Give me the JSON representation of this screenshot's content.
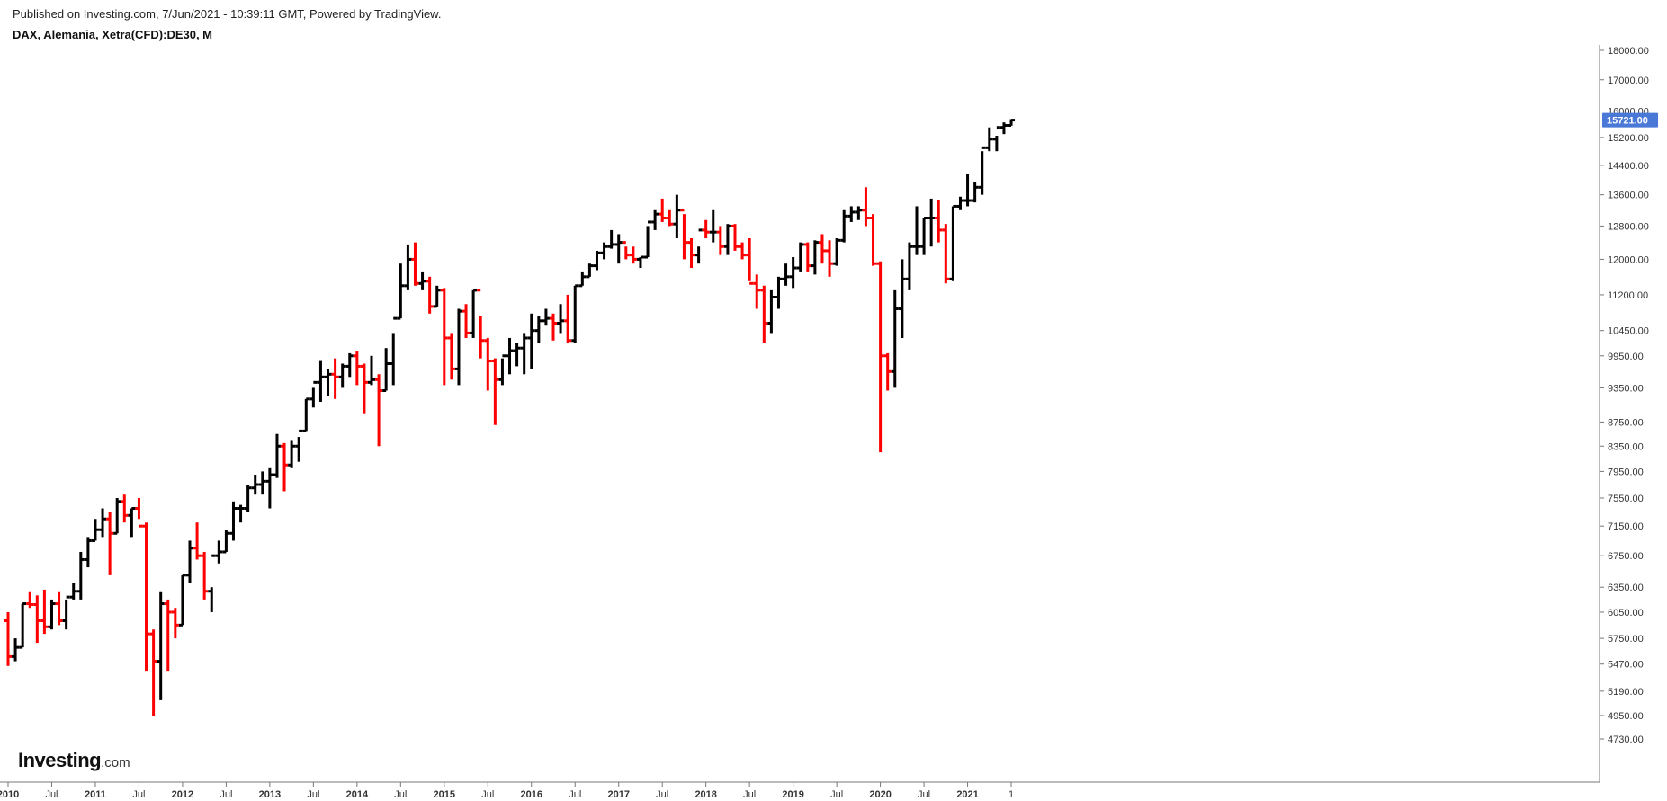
{
  "header": {
    "published": "Published on Investing.com, 7/Jun/2021 - 10:39:11 GMT, Powered by TradingView.",
    "instrument": "DAX, Alemania, Xetra(CFD):DE30, M"
  },
  "logo": {
    "brand": "Investing",
    "suffix": ".com"
  },
  "colors": {
    "up": "#000000",
    "down": "#ff0000",
    "last_price_bg": "#4a78d6",
    "axis": "#555555"
  },
  "chart_data": {
    "type": "ohlc",
    "price_axis_labels": [
      "18000.00",
      "17000.00",
      "16000.00",
      "15200.00",
      "14400.00",
      "13600.00",
      "12800.00",
      "12000.00",
      "11200.00",
      "10450.00",
      "9950.00",
      "9350.00",
      "8750.00",
      "8350.00",
      "7950.00",
      "7550.00",
      "7150.00",
      "6750.00",
      "6350.00",
      "6050.00",
      "5750.00",
      "5470.00",
      "5190.00",
      "4950.00",
      "4730.00"
    ],
    "time_axis_labels": [
      "2010",
      "Jul",
      "2011",
      "Jul",
      "2012",
      "Jul",
      "2013",
      "Jul",
      "2014",
      "Jul",
      "2015",
      "Jul",
      "2016",
      "Jul",
      "2017",
      "Jul",
      "2018",
      "Jul",
      "2019",
      "Jul",
      "2020",
      "Jul",
      "2021",
      "1"
    ],
    "last_price": 15721.0,
    "last_price_label": "15721.00",
    "y_scale": "log",
    "ylim": [
      4600,
      18000
    ],
    "start_month": "2010-01",
    "bars": [
      [
        5950,
        6050,
        5450,
        5550
      ],
      [
        5550,
        5750,
        5500,
        5650
      ],
      [
        5650,
        6150,
        5650,
        6150
      ],
      [
        6150,
        6300,
        6100,
        6140
      ],
      [
        6140,
        6250,
        5700,
        5950
      ],
      [
        5950,
        6320,
        5800,
        5880
      ],
      [
        5880,
        6200,
        5850,
        6150
      ],
      [
        6150,
        6300,
        5900,
        5950
      ],
      [
        5950,
        6200,
        5850,
        6230
      ],
      [
        6230,
        6400,
        6200,
        6300
      ],
      [
        6300,
        6800,
        6200,
        6700
      ],
      [
        6700,
        7000,
        6600,
        6950
      ],
      [
        6950,
        7250,
        6950,
        7100
      ],
      [
        7100,
        7400,
        7000,
        7250
      ],
      [
        7250,
        7350,
        6500,
        7050
      ],
      [
        7050,
        7550,
        7050,
        7500
      ],
      [
        7500,
        7600,
        7200,
        7300
      ],
      [
        7300,
        7400,
        7000,
        7400
      ],
      [
        7400,
        7550,
        7250,
        7150
      ],
      [
        7150,
        7200,
        5400,
        5800
      ],
      [
        5800,
        5850,
        4950,
        5500
      ],
      [
        5500,
        6300,
        5100,
        6150
      ],
      [
        6150,
        6200,
        5400,
        6050
      ],
      [
        6050,
        6100,
        5750,
        5900
      ],
      [
        5900,
        6500,
        5900,
        6500
      ],
      [
        6500,
        6950,
        6400,
        6850
      ],
      [
        6850,
        7200,
        6700,
        6750
      ],
      [
        6750,
        6800,
        6200,
        6300
      ],
      [
        6300,
        6350,
        6050,
        6750
      ],
      [
        6750,
        6950,
        6650,
        6800
      ],
      [
        6800,
        7100,
        6800,
        7050
      ],
      [
        7050,
        7500,
        6950,
        7400
      ],
      [
        7400,
        7450,
        7200,
        7400
      ],
      [
        7400,
        7750,
        7350,
        7700
      ],
      [
        7700,
        7900,
        7600,
        7750
      ],
      [
        7750,
        7950,
        7600,
        7800
      ],
      [
        7800,
        8000,
        7400,
        7900
      ],
      [
        7900,
        8550,
        7850,
        8350
      ],
      [
        8350,
        8400,
        7650,
        8050
      ],
      [
        8050,
        8450,
        8000,
        8350
      ],
      [
        8350,
        8500,
        8100,
        8600
      ],
      [
        8600,
        9150,
        8600,
        9150
      ],
      [
        9150,
        9350,
        9000,
        9450
      ],
      [
        9450,
        9850,
        9100,
        9550
      ],
      [
        9550,
        9700,
        9200,
        9600
      ],
      [
        9600,
        9900,
        9150,
        9550
      ],
      [
        9550,
        9800,
        9350,
        9750
      ],
      [
        9750,
        10000,
        9550,
        9950
      ],
      [
        9950,
        10050,
        9400,
        9750
      ],
      [
        9750,
        9800,
        8900,
        9450
      ],
      [
        9450,
        9950,
        9400,
        9500
      ],
      [
        9500,
        9600,
        8350,
        9300
      ],
      [
        9300,
        10100,
        9300,
        9800
      ],
      [
        9800,
        10400,
        9400,
        10700
      ],
      [
        10700,
        11900,
        10700,
        11400
      ],
      [
        11400,
        12350,
        11300,
        12000
      ],
      [
        12000,
        12400,
        11400,
        11450
      ],
      [
        11450,
        11700,
        11300,
        11500
      ],
      [
        11500,
        11600,
        10800,
        10950
      ],
      [
        10950,
        11400,
        10950,
        11300
      ],
      [
        11300,
        11350,
        9400,
        10300
      ],
      [
        10300,
        10400,
        9500,
        9700
      ],
      [
        9700,
        10900,
        9400,
        10850
      ],
      [
        10850,
        11000,
        10300,
        10400
      ],
      [
        10400,
        11300,
        10300,
        11300
      ],
      [
        11300,
        10750,
        9900,
        10250
      ],
      [
        10250,
        10300,
        9300,
        9850
      ],
      [
        9850,
        9900,
        8700,
        9500
      ],
      [
        9500,
        9900,
        9400,
        9950
      ],
      [
        9950,
        10300,
        9600,
        10050
      ],
      [
        10050,
        10200,
        9750,
        10100
      ],
      [
        10100,
        10400,
        9600,
        10300
      ],
      [
        10300,
        10800,
        9700,
        10450
      ],
      [
        10450,
        10750,
        10200,
        10650
      ],
      [
        10650,
        10900,
        10550,
        10700
      ],
      [
        10700,
        10800,
        10250,
        10600
      ],
      [
        10600,
        11000,
        10400,
        10650
      ],
      [
        10650,
        11200,
        10200,
        10250
      ],
      [
        10250,
        11400,
        10200,
        11400
      ],
      [
        11400,
        11700,
        11400,
        11600
      ],
      [
        11600,
        11900,
        11600,
        11850
      ],
      [
        11850,
        12200,
        11750,
        12150
      ],
      [
        12150,
        12400,
        12000,
        12300
      ],
      [
        12300,
        12700,
        12250,
        12350
      ],
      [
        12350,
        12600,
        11900,
        12400
      ],
      [
        12400,
        12300,
        12000,
        12100
      ],
      [
        12100,
        12300,
        11900,
        12000
      ],
      [
        12000,
        12050,
        11800,
        12050
      ],
      [
        12050,
        12800,
        12050,
        12900
      ],
      [
        12900,
        13200,
        12700,
        13100
      ],
      [
        13100,
        13500,
        12900,
        13000
      ],
      [
        13000,
        13200,
        12800,
        12850
      ],
      [
        12850,
        13600,
        12500,
        13200
      ],
      [
        13200,
        13100,
        12000,
        12400
      ],
      [
        12400,
        12500,
        11800,
        12100
      ],
      [
        12100,
        12300,
        11900,
        12700
      ],
      [
        12700,
        12950,
        12500,
        12650
      ],
      [
        12650,
        13200,
        12400,
        12650
      ],
      [
        12650,
        12800,
        12100,
        12300
      ],
      [
        12300,
        12850,
        12100,
        12800
      ],
      [
        12800,
        12850,
        12200,
        12300
      ],
      [
        12300,
        12400,
        12000,
        12100
      ],
      [
        12100,
        12500,
        11500,
        11450
      ],
      [
        11450,
        11650,
        10900,
        11300
      ],
      [
        11300,
        11400,
        10200,
        10600
      ],
      [
        10600,
        11300,
        10400,
        11150
      ],
      [
        11150,
        11600,
        10900,
        11550
      ],
      [
        11550,
        11900,
        11400,
        11600
      ],
      [
        11600,
        12050,
        11350,
        11800
      ],
      [
        11800,
        12400,
        11700,
        12350
      ],
      [
        12350,
        12400,
        11700,
        11850
      ],
      [
        11850,
        12450,
        11650,
        12400
      ],
      [
        12400,
        12600,
        11900,
        12200
      ],
      [
        12200,
        12450,
        11600,
        11900
      ],
      [
        11900,
        12500,
        11850,
        12450
      ],
      [
        12450,
        13200,
        12400,
        13050
      ],
      [
        13050,
        13300,
        12900,
        13150
      ],
      [
        13150,
        13300,
        12950,
        13200
      ],
      [
        13200,
        13800,
        12800,
        13000
      ],
      [
        13000,
        13100,
        11850,
        11900
      ],
      [
        11900,
        11950,
        8250,
        9950
      ],
      [
        9950,
        10000,
        9300,
        9650
      ],
      [
        9650,
        11300,
        9350,
        10900
      ],
      [
        10900,
        12000,
        10300,
        11550
      ],
      [
        11550,
        12400,
        11300,
        12300
      ],
      [
        12300,
        13300,
        12100,
        12300
      ],
      [
        12300,
        13000,
        12100,
        13000
      ],
      [
        13000,
        13500,
        12300,
        13000
      ],
      [
        13000,
        13450,
        12400,
        12700
      ],
      [
        12700,
        12850,
        11450,
        11550
      ],
      [
        11550,
        13300,
        11500,
        13300
      ],
      [
        13300,
        13550,
        13200,
        13450
      ],
      [
        13450,
        14150,
        13300,
        13450
      ],
      [
        13450,
        13950,
        13400,
        13800
      ],
      [
        13800,
        14800,
        13600,
        14900
      ],
      [
        14900,
        15500,
        14800,
        15150
      ],
      [
        15150,
        15250,
        14800,
        15500
      ],
      [
        15500,
        15650,
        15300,
        15560
      ],
      [
        15560,
        15750,
        15550,
        15721
      ]
    ]
  }
}
